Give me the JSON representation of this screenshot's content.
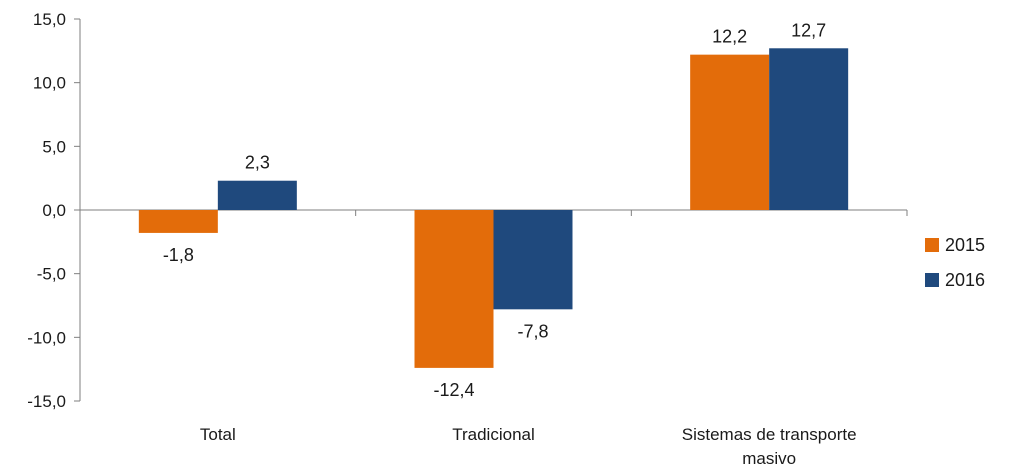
{
  "chart_data": {
    "type": "bar",
    "categories": [
      [
        "Total"
      ],
      [
        "Tradicional"
      ],
      [
        "Sistemas de transporte",
        "masivo"
      ]
    ],
    "series": [
      {
        "name": "2015",
        "color": "#E36C0A",
        "values": [
          -1.8,
          -12.4,
          12.2
        ],
        "labels": [
          "-1,8",
          "-12,4",
          "12,2"
        ]
      },
      {
        "name": "2016",
        "color": "#1F497D",
        "values": [
          2.3,
          -7.8,
          12.7
        ],
        "labels": [
          "2,3",
          "-7,8",
          "12,7"
        ]
      }
    ],
    "ylim": [
      -15,
      15
    ],
    "yticks": [
      15,
      10,
      5,
      0,
      -5,
      -10,
      -15
    ],
    "ytick_labels": [
      "15,0",
      "10,0",
      "5,0",
      "0,0",
      "-5,0",
      "-10,0",
      "-15,0"
    ],
    "legend_position": "right",
    "grid": false
  }
}
